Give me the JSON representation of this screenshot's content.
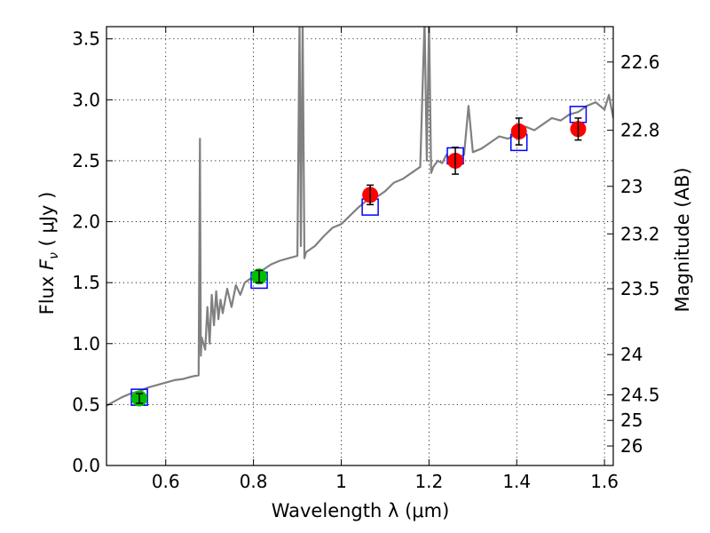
{
  "chart_data": {
    "type": "scatter",
    "xlabel": "Wavelength  λ (μm)",
    "ylabel_prefix": "Flux  ",
    "ylabel_symbol": "F",
    "ylabel_sub": "ν",
    "ylabel_unit": "  ( μJy )",
    "y2label": "Magnitude (AB)",
    "xlim": [
      0.465,
      1.62
    ],
    "ylim": [
      0.0,
      3.6
    ],
    "grid": true,
    "x_ticks": [
      0.6,
      0.8,
      1.0,
      1.2,
      1.4,
      1.6
    ],
    "x_tick_labels": [
      "0.6",
      "0.8",
      "1",
      "1.2",
      "1.4",
      "1.6"
    ],
    "y_ticks": [
      0.0,
      0.5,
      1.0,
      1.5,
      2.0,
      2.5,
      3.0,
      3.5
    ],
    "y_tick_labels": [
      "0.0",
      "0.5",
      "1.0",
      "1.5",
      "2.0",
      "2.5",
      "3.0",
      "3.5"
    ],
    "mag_ticks": [
      {
        "label": "22.6",
        "flux": 3.31
      },
      {
        "label": "22.8",
        "flux": 2.75
      },
      {
        "label": "23",
        "flux": 2.29
      },
      {
        "label": "23.2",
        "flux": 1.9
      },
      {
        "label": "23.5",
        "flux": 1.45
      },
      {
        "label": "24",
        "flux": 0.91
      },
      {
        "label": "24.5",
        "flux": 0.58
      },
      {
        "label": "25",
        "flux": 0.37
      },
      {
        "label": "26",
        "flux": 0.16
      }
    ],
    "model_spectrum": {
      "name": "model SED",
      "color": "#808080",
      "x": [
        0.465,
        0.48,
        0.5,
        0.52,
        0.54,
        0.56,
        0.58,
        0.6,
        0.62,
        0.64,
        0.66,
        0.675,
        0.678,
        0.68,
        0.682,
        0.69,
        0.695,
        0.7,
        0.705,
        0.71,
        0.715,
        0.72,
        0.725,
        0.73,
        0.74,
        0.75,
        0.76,
        0.77,
        0.78,
        0.8,
        0.82,
        0.84,
        0.86,
        0.88,
        0.9,
        0.905,
        0.908,
        0.912,
        0.916,
        0.92,
        0.94,
        0.96,
        0.98,
        1.0,
        1.02,
        1.04,
        1.06,
        1.08,
        1.1,
        1.12,
        1.14,
        1.16,
        1.18,
        1.19,
        1.195,
        1.2,
        1.205,
        1.21,
        1.22,
        1.23,
        1.24,
        1.25,
        1.26,
        1.28,
        1.29,
        1.3,
        1.32,
        1.34,
        1.36,
        1.38,
        1.4,
        1.42,
        1.44,
        1.46,
        1.48,
        1.5,
        1.52,
        1.54,
        1.56,
        1.58,
        1.6,
        1.61,
        1.62
      ],
      "y": [
        0.49,
        0.52,
        0.56,
        0.59,
        0.61,
        0.64,
        0.66,
        0.68,
        0.7,
        0.71,
        0.73,
        0.74,
        2.68,
        0.9,
        1.05,
        0.95,
        1.3,
        1.0,
        1.4,
        1.15,
        1.43,
        1.2,
        1.36,
        1.25,
        1.45,
        1.3,
        1.48,
        1.4,
        1.5,
        1.55,
        1.6,
        1.65,
        1.68,
        1.7,
        1.72,
        3.65,
        1.8,
        3.65,
        1.7,
        1.75,
        1.8,
        1.88,
        1.95,
        1.98,
        2.05,
        2.12,
        2.18,
        2.2,
        2.25,
        2.32,
        2.35,
        2.4,
        2.45,
        3.65,
        2.5,
        3.65,
        2.4,
        2.45,
        2.5,
        2.48,
        2.55,
        2.5,
        2.52,
        2.55,
        2.95,
        2.57,
        2.6,
        2.65,
        2.7,
        2.68,
        2.72,
        2.78,
        2.75,
        2.8,
        2.85,
        2.83,
        2.88,
        2.9,
        2.95,
        2.98,
        2.92,
        3.04,
        2.85
      ]
    },
    "series": [
      {
        "name": "model_filter_flux",
        "color": "#0000ff",
        "marker": "square-open",
        "x": [
          0.54,
          0.813,
          1.066,
          1.26,
          1.405,
          1.54
        ],
        "y": [
          0.56,
          1.52,
          2.12,
          2.54,
          2.65,
          2.88
        ]
      },
      {
        "name": "observed_optical",
        "color": "#00bf00",
        "marker": "circle",
        "x": [
          0.54,
          0.813
        ],
        "y": [
          0.55,
          1.55
        ],
        "err": [
          0.04,
          0.05
        ]
      },
      {
        "name": "observed_nir",
        "color": "#ff0000",
        "marker": "circle",
        "x": [
          1.066,
          1.26,
          1.405,
          1.54
        ],
        "y": [
          2.22,
          2.5,
          2.74,
          2.76
        ],
        "err": [
          0.08,
          0.11,
          0.11,
          0.09
        ]
      }
    ]
  }
}
